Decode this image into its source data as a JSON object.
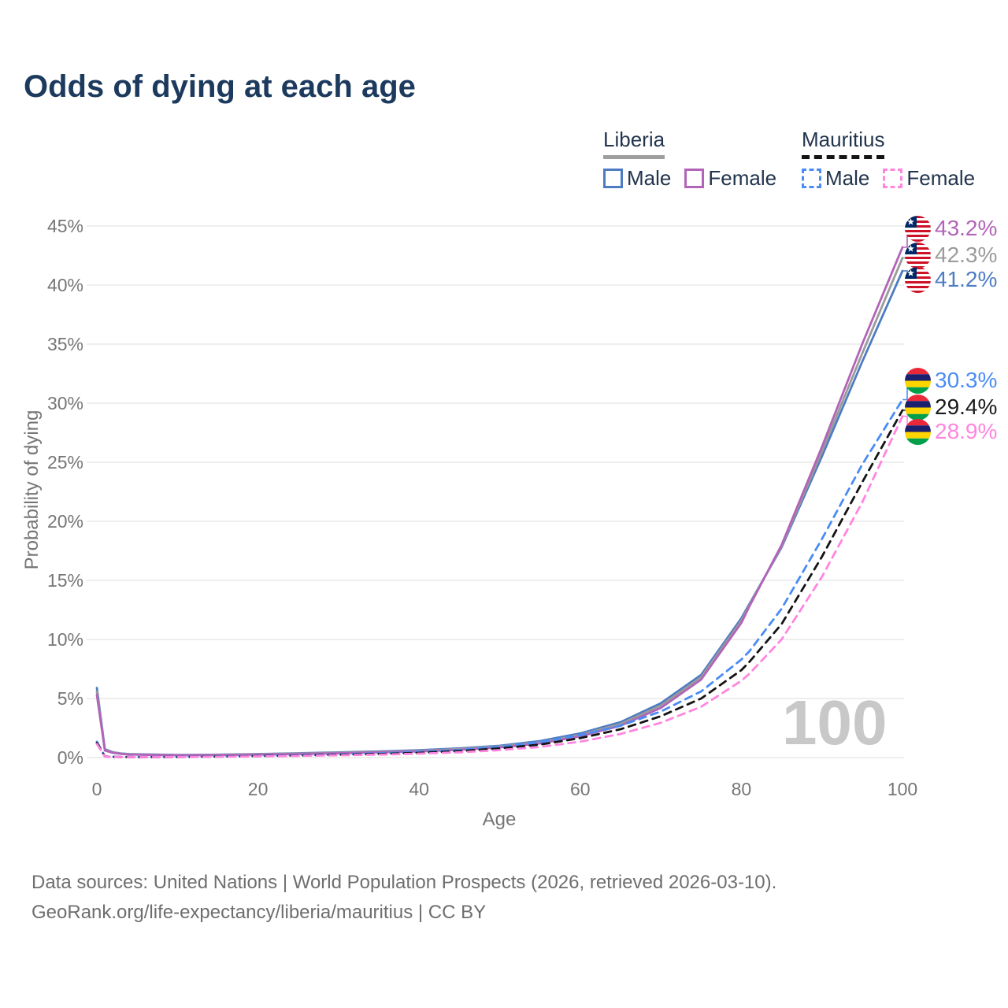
{
  "title": "Odds of dying at each age",
  "legend": {
    "groups": [
      {
        "country": "Liberia",
        "line_style": "solid",
        "underline_color": "#9e9e9e",
        "items": [
          {
            "label": "Male",
            "color": "#4d7cc3"
          },
          {
            "label": "Female",
            "color": "#b264b8"
          }
        ]
      },
      {
        "country": "Mauritius",
        "line_style": "dashed",
        "underline_color": "#141414",
        "items": [
          {
            "label": "Male",
            "color": "#4a8cf5"
          },
          {
            "label": "Female",
            "color": "#ff85e0"
          }
        ]
      }
    ]
  },
  "watermark": "100",
  "end_labels": [
    {
      "value": "43.2%",
      "color": "#b264b8",
      "flag": "liberia",
      "series": "Liberia Female",
      "series_index": 2
    },
    {
      "value": "42.3%",
      "color": "#9b9b9b",
      "flag": "liberia",
      "series": "Liberia Both sexes",
      "series_index": 1
    },
    {
      "value": "41.2%",
      "color": "#4d7cc3",
      "flag": "liberia",
      "series": "Liberia Male",
      "series_index": 0
    },
    {
      "value": "30.3%",
      "color": "#4a8cf5",
      "flag": "mauritius",
      "series": "Mauritius Male",
      "series_index": 3
    },
    {
      "value": "29.4%",
      "color": "#1a1a1a",
      "flag": "mauritius",
      "series": "Mauritius Both sexes",
      "series_index": 4
    },
    {
      "value": "28.9%",
      "color": "#ff85e0",
      "flag": "mauritius",
      "series": "Mauritius Female",
      "series_index": 5
    }
  ],
  "footer": {
    "line1": "Data sources: United Nations | World Population Prospects (2026, retrieved 2026-03-10).",
    "line2": "GeoRank.org/life-expectancy/liberia/mauritius | CC BY"
  },
  "chart_data": {
    "type": "line",
    "title": "Odds of dying at each age",
    "xlabel": "Age",
    "ylabel": "Probability of dying",
    "xlim": [
      0,
      100
    ],
    "ylim": [
      0,
      45
    ],
    "x_ticks": [
      0,
      20,
      40,
      60,
      80,
      100
    ],
    "y_ticks": [
      0,
      5,
      10,
      15,
      20,
      25,
      30,
      35,
      40,
      45
    ],
    "y_tick_suffix": "%",
    "grid": "horizontal",
    "legend_position": "top-right",
    "ages": [
      0,
      1,
      2,
      3,
      4,
      5,
      10,
      15,
      20,
      25,
      30,
      35,
      40,
      45,
      50,
      55,
      60,
      65,
      70,
      75,
      80,
      81,
      85,
      90,
      95,
      100
    ],
    "series": [
      {
        "name": "Liberia Male",
        "color": "#4d7cc3",
        "dash": null,
        "values": [
          5.9,
          0.7,
          0.45,
          0.35,
          0.3,
          0.28,
          0.22,
          0.25,
          0.3,
          0.37,
          0.44,
          0.52,
          0.62,
          0.78,
          1.0,
          1.4,
          2.05,
          3.0,
          4.6,
          7.0,
          11.8,
          13.0,
          17.8,
          25.5,
          33.5,
          41.2
        ]
      },
      {
        "name": "Liberia Both sexes",
        "color": "#9b9b9b",
        "dash": null,
        "values": [
          5.6,
          0.65,
          0.42,
          0.33,
          0.28,
          0.26,
          0.21,
          0.23,
          0.28,
          0.34,
          0.41,
          0.48,
          0.57,
          0.72,
          0.93,
          1.3,
          1.92,
          2.85,
          4.4,
          6.8,
          11.6,
          12.9,
          17.9,
          25.9,
          34.2,
          42.3
        ]
      },
      {
        "name": "Liberia Female",
        "color": "#b264b8",
        "dash": null,
        "values": [
          5.3,
          0.6,
          0.4,
          0.31,
          0.26,
          0.24,
          0.2,
          0.21,
          0.25,
          0.3,
          0.37,
          0.44,
          0.52,
          0.66,
          0.86,
          1.2,
          1.8,
          2.7,
          4.2,
          6.6,
          11.4,
          12.8,
          18.0,
          26.3,
          35.0,
          43.2
        ]
      },
      {
        "name": "Mauritius Male",
        "color": "#4a8cf5",
        "dash": "9 7",
        "values": [
          1.35,
          0.1,
          0.07,
          0.06,
          0.05,
          0.05,
          0.06,
          0.1,
          0.15,
          0.2,
          0.28,
          0.36,
          0.48,
          0.65,
          0.9,
          1.3,
          1.9,
          2.7,
          3.9,
          5.6,
          8.3,
          9.0,
          12.6,
          18.5,
          24.8,
          30.3
        ]
      },
      {
        "name": "Mauritius Both sexes",
        "color": "#141414",
        "dash": "9 7",
        "values": [
          1.25,
          0.09,
          0.06,
          0.05,
          0.05,
          0.04,
          0.05,
          0.08,
          0.12,
          0.17,
          0.23,
          0.3,
          0.4,
          0.55,
          0.78,
          1.1,
          1.65,
          2.4,
          3.5,
          5.0,
          7.4,
          8.1,
          11.3,
          17.0,
          23.3,
          29.4
        ]
      },
      {
        "name": "Mauritius Female",
        "color": "#ff85e0",
        "dash": "9 7",
        "values": [
          1.15,
          0.08,
          0.06,
          0.05,
          0.04,
          0.04,
          0.05,
          0.07,
          0.1,
          0.14,
          0.19,
          0.25,
          0.33,
          0.45,
          0.63,
          0.9,
          1.35,
          2.0,
          2.95,
          4.3,
          6.5,
          7.1,
          10.0,
          15.3,
          21.6,
          28.9
        ]
      }
    ]
  }
}
